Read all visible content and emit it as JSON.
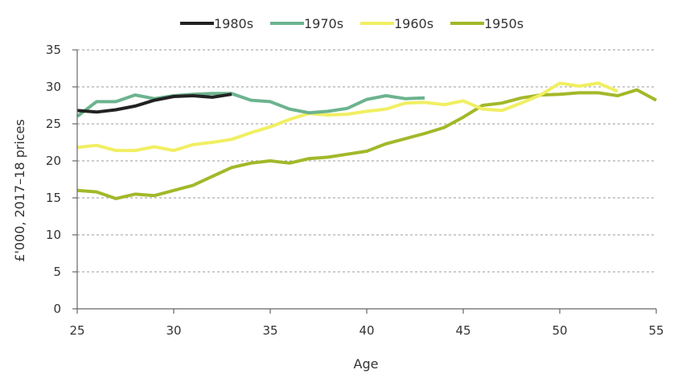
{
  "chart_data": {
    "type": "line",
    "title": "",
    "xlabel": "Age",
    "ylabel": "£'000, 2017–18 prices",
    "xlim": [
      25,
      55
    ],
    "ylim": [
      0,
      35
    ],
    "x_ticks": [
      25,
      30,
      35,
      40,
      45,
      50,
      55
    ],
    "y_ticks": [
      0,
      5,
      10,
      15,
      20,
      25,
      30,
      35
    ],
    "grid": "horizontal dashed",
    "legend_position": "top",
    "series": [
      {
        "name": "1980s",
        "color": "#222222",
        "x": [
          25,
          26,
          27,
          28,
          29,
          30,
          31,
          32,
          33
        ],
        "y": [
          26.8,
          26.6,
          26.9,
          27.4,
          28.2,
          28.7,
          28.8,
          28.6,
          29.0
        ]
      },
      {
        "name": "1970s",
        "color": "#6cb38f",
        "x": [
          25,
          26,
          27,
          28,
          29,
          30,
          31,
          32,
          33,
          34,
          35,
          36,
          37,
          38,
          39,
          40,
          41,
          42,
          43
        ],
        "y": [
          26.0,
          28.0,
          28.0,
          28.9,
          28.4,
          28.8,
          29.0,
          29.1,
          29.1,
          28.2,
          28.0,
          27.0,
          26.5,
          26.7,
          27.1,
          28.3,
          28.8,
          28.4,
          28.5
        ]
      },
      {
        "name": "1960s",
        "color": "#f0ef62",
        "x": [
          25,
          26,
          27,
          28,
          29,
          30,
          31,
          32,
          33,
          34,
          35,
          36,
          37,
          38,
          39,
          40,
          41,
          42,
          43,
          44,
          45,
          46,
          47,
          48,
          49,
          50,
          51,
          52,
          53
        ],
        "y": [
          21.8,
          22.1,
          21.4,
          21.4,
          21.9,
          21.4,
          22.2,
          22.5,
          22.9,
          23.8,
          24.6,
          25.6,
          26.4,
          26.2,
          26.3,
          26.7,
          27.0,
          27.8,
          27.9,
          27.6,
          28.1,
          27.0,
          26.8,
          27.8,
          28.9,
          30.5,
          30.1,
          30.5,
          29.4
        ]
      },
      {
        "name": "1950s",
        "color": "#a3b829",
        "x": [
          25,
          26,
          27,
          28,
          29,
          30,
          31,
          32,
          33,
          34,
          35,
          36,
          37,
          38,
          39,
          40,
          41,
          42,
          43,
          44,
          45,
          46,
          47,
          48,
          49,
          50,
          51,
          52,
          53,
          54,
          55
        ],
        "y": [
          16.0,
          15.8,
          14.9,
          15.5,
          15.3,
          16.0,
          16.7,
          17.9,
          19.1,
          19.7,
          20.0,
          19.7,
          20.3,
          20.5,
          20.9,
          21.3,
          22.3,
          23.0,
          23.7,
          24.5,
          25.9,
          27.5,
          27.8,
          28.5,
          28.9,
          29.0,
          29.2,
          29.2,
          28.8,
          29.6,
          28.2
        ]
      }
    ]
  }
}
